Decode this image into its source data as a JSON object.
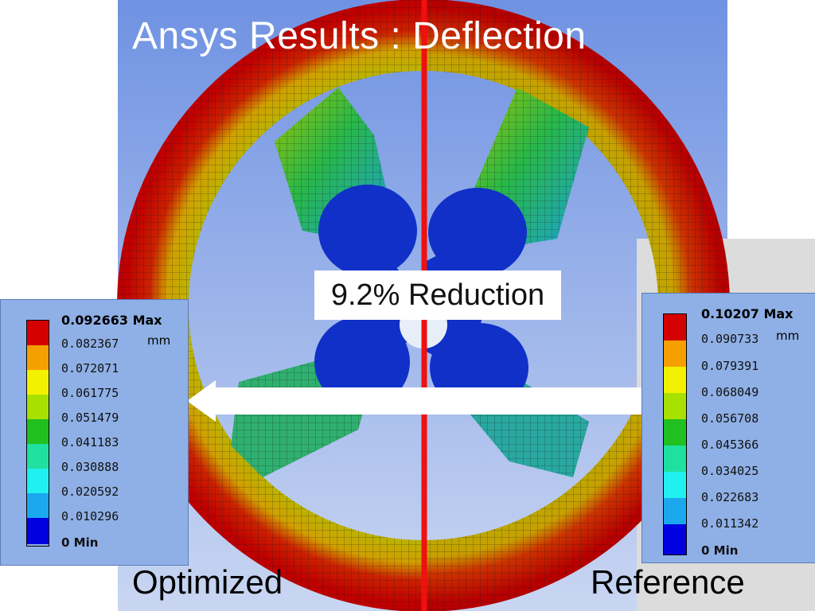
{
  "title": "Ansys Results : Deflection",
  "callout": "9.2% Reduction",
  "captions": {
    "left": "Optimized",
    "right": "Reference"
  },
  "colors": {
    "background_blue": "#7f9fe0",
    "divider_red": "#ee1111",
    "contour_scale": [
      "#d40000",
      "#f5a000",
      "#f2f200",
      "#a8e000",
      "#20c020",
      "#20e0a0",
      "#20f0f0",
      "#1ba8ee",
      "#0000e0"
    ]
  },
  "legend_left": {
    "max_label": "0.092663 Max",
    "unit": "mm",
    "ticks": [
      "0.082367",
      "0.072071",
      "0.061775",
      "0.051479",
      "0.041183",
      "0.030888",
      "0.020592",
      "0.010296"
    ],
    "min_label": "0 Min"
  },
  "legend_right": {
    "max_label": "0.10207 Max",
    "unit": "mm",
    "ticks": [
      "0.090733",
      "0.079391",
      "0.068049",
      "0.056708",
      "0.045366",
      "0.034025",
      "0.022683",
      "0.011342"
    ],
    "min_label": "0 Min"
  }
}
